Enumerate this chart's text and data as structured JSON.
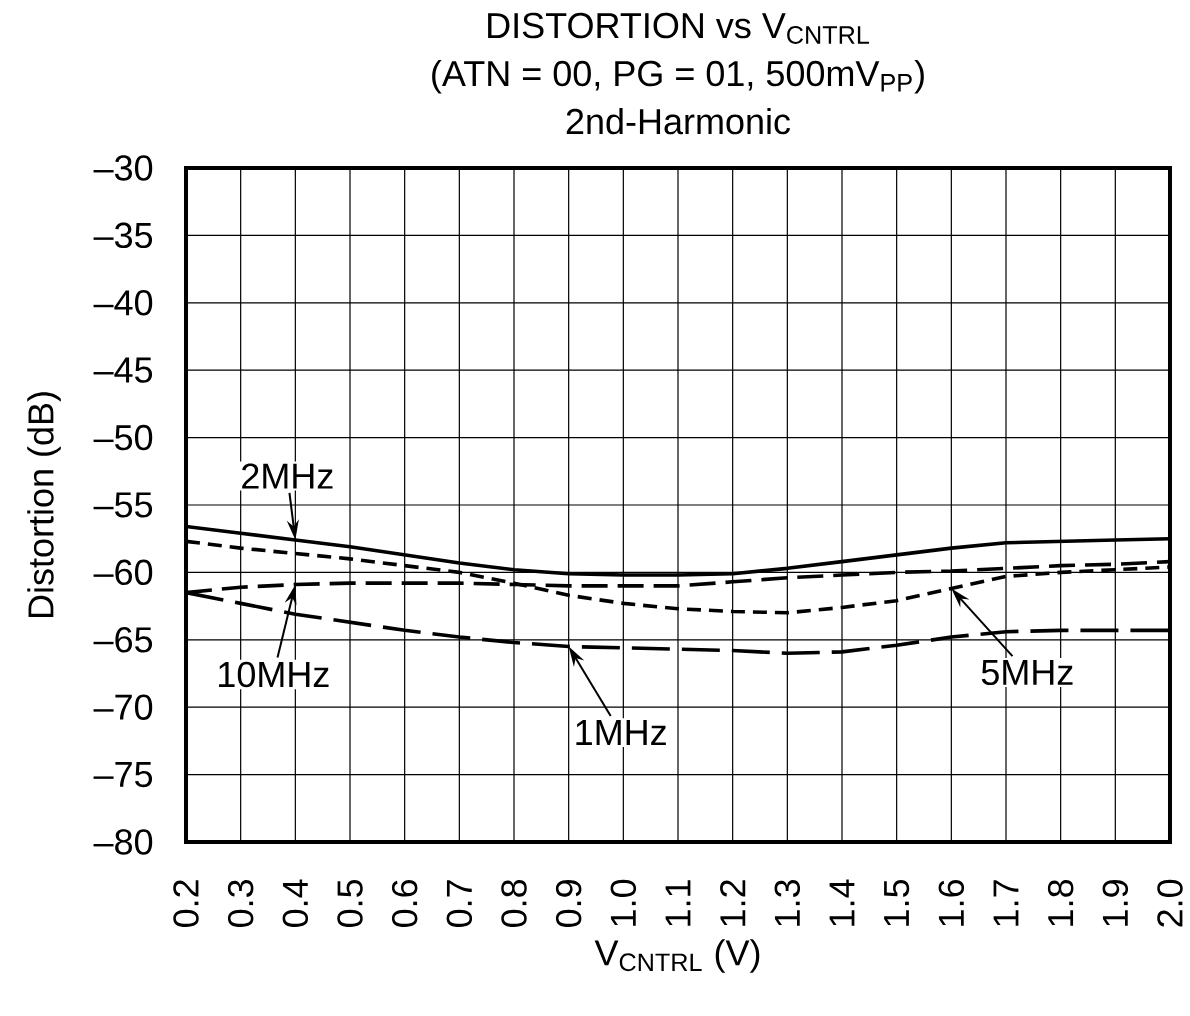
{
  "chart_data": {
    "type": "line",
    "title": "DISTORTION vs V$_{CNTRL}$",
    "subtitle": "(ATN = 00, PG = 01, 500mV$_{PP}$)",
    "annotations": [
      "2nd-Harmonic",
      {
        "text": "1MHz",
        "x": 0.9,
        "y": -65.5
      },
      {
        "text": "2MHz",
        "x": 0.4,
        "y": -57.6
      },
      {
        "text": "5MHz",
        "x": 1.6,
        "y": -61.2
      },
      {
        "text": "10MHz",
        "x": 0.4,
        "y": -60.9
      }
    ],
    "xlabel": "V$_{CNTRL}$ (V)",
    "ylabel": "Distortion (dB)",
    "x": [
      0.2,
      0.3,
      0.4,
      0.5,
      0.6,
      0.7,
      0.8,
      0.9,
      1.0,
      1.1,
      1.2,
      1.3,
      1.4,
      1.5,
      1.6,
      1.7,
      1.8,
      1.9,
      2.0
    ],
    "series": [
      {
        "color": "#000000",
        "line_style": "dashed",
        "values": [
          -61.5,
          -62.3,
          -63.1,
          -63.7,
          -64.3,
          -64.8,
          -65.2,
          -65.5,
          -65.6,
          -65.7,
          -65.8,
          -66.0,
          -65.9,
          -65.4,
          -64.8,
          -64.4,
          -64.3,
          -64.3,
          -64.3
        ]
      },
      {
        "color": "#000000",
        "line_style": "solid",
        "values": [
          -56.6,
          -57.1,
          -57.6,
          -58.1,
          -58.7,
          -59.3,
          -59.8,
          -60.1,
          -60.2,
          -60.2,
          -60.1,
          -59.7,
          -59.2,
          -58.7,
          -58.2,
          -57.8,
          -57.7,
          -57.6,
          -57.5
        ]
      },
      {
        "color": "#000000",
        "line_style": "dashed",
        "values": [
          -57.7,
          -58.2,
          -58.6,
          -59.0,
          -59.5,
          -60.0,
          -60.8,
          -61.7,
          -62.3,
          -62.7,
          -62.9,
          -63.0,
          -62.6,
          -62.1,
          -61.2,
          -60.3,
          -60.0,
          -59.8,
          -59.6
        ]
      },
      {
        "color": "#000000",
        "line_style": "dashed",
        "values": [
          -61.5,
          -61.1,
          -60.9,
          -60.8,
          -60.8,
          -60.8,
          -60.9,
          -61.0,
          -61.0,
          -61.0,
          -60.7,
          -60.4,
          -60.2,
          -60.0,
          -59.9,
          -59.7,
          -59.5,
          -59.4,
          -59.2
        ]
      }
    ],
    "xlim": [
      0.2,
      2.0
    ],
    "ylim": [
      -80,
      -30
    ],
    "xticks": [
      0.2,
      0.3,
      0.4,
      0.5,
      0.6,
      0.7,
      0.8,
      0.9,
      {
        "value": 1.0,
        "label": "1.0"
      },
      1.1,
      1.2,
      1.3,
      1.4,
      1.5,
      1.6,
      1.7,
      1.8,
      1.9,
      {
        "value": 2.0,
        "label": "2.0"
      }
    ],
    "yticks": [
      {
        "value": -80,
        "label": "–80"
      },
      {
        "value": -75,
        "label": "–75"
      },
      {
        "value": -70,
        "label": "–70"
      },
      {
        "value": -65,
        "label": "–65"
      },
      {
        "value": -60,
        "label": "–60"
      },
      {
        "value": -55,
        "label": "–55"
      },
      {
        "value": -50,
        "label": "–50"
      },
      {
        "value": -45,
        "label": "–45"
      },
      {
        "value": -40,
        "label": "–40"
      },
      {
        "value": -35,
        "label": "–35"
      },
      {
        "value": -30,
        "label": "–30"
      }
    ],
    "grid": true
  }
}
